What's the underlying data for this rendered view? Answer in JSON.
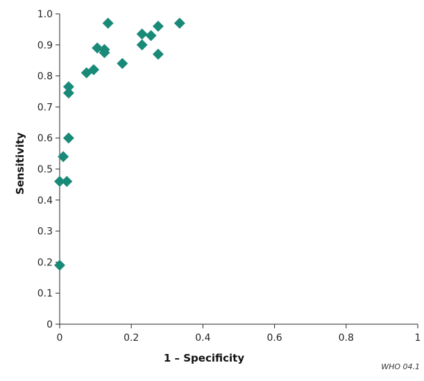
{
  "figure_code": "WHO 04.1",
  "chart_data": {
    "type": "scatter",
    "xlabel": "1 – Specificity",
    "ylabel": "Sensitivity",
    "xlim": [
      0,
      1
    ],
    "ylim": [
      0,
      1
    ],
    "xticks": [
      0,
      0.2,
      0.4,
      0.6,
      0.8,
      1
    ],
    "xtick_labels": [
      "0",
      "0.2",
      "0.4",
      "0.6",
      "0.8",
      "1"
    ],
    "yticks": [
      0,
      0.1,
      0.2,
      0.3,
      0.4,
      0.5,
      0.6,
      0.7,
      0.8,
      0.9,
      1.0
    ],
    "ytick_labels": [
      "0",
      "0.1",
      "0.2",
      "0.3",
      "0.4",
      "0.5",
      "0.6",
      "0.7",
      "0.8",
      "0.9",
      "1.0"
    ],
    "grid": false,
    "marker": "diamond",
    "marker_color": "#1a8a78",
    "points": [
      {
        "x": 0.0,
        "y": 0.19
      },
      {
        "x": 0.0,
        "y": 0.46
      },
      {
        "x": 0.02,
        "y": 0.46
      },
      {
        "x": 0.01,
        "y": 0.54
      },
      {
        "x": 0.025,
        "y": 0.6
      },
      {
        "x": 0.025,
        "y": 0.745
      },
      {
        "x": 0.025,
        "y": 0.765
      },
      {
        "x": 0.075,
        "y": 0.81
      },
      {
        "x": 0.095,
        "y": 0.82
      },
      {
        "x": 0.105,
        "y": 0.89
      },
      {
        "x": 0.125,
        "y": 0.875
      },
      {
        "x": 0.125,
        "y": 0.885
      },
      {
        "x": 0.135,
        "y": 0.97
      },
      {
        "x": 0.175,
        "y": 0.84
      },
      {
        "x": 0.23,
        "y": 0.935
      },
      {
        "x": 0.23,
        "y": 0.9
      },
      {
        "x": 0.255,
        "y": 0.93
      },
      {
        "x": 0.275,
        "y": 0.96
      },
      {
        "x": 0.275,
        "y": 0.87
      },
      {
        "x": 0.335,
        "y": 0.97
      }
    ]
  }
}
